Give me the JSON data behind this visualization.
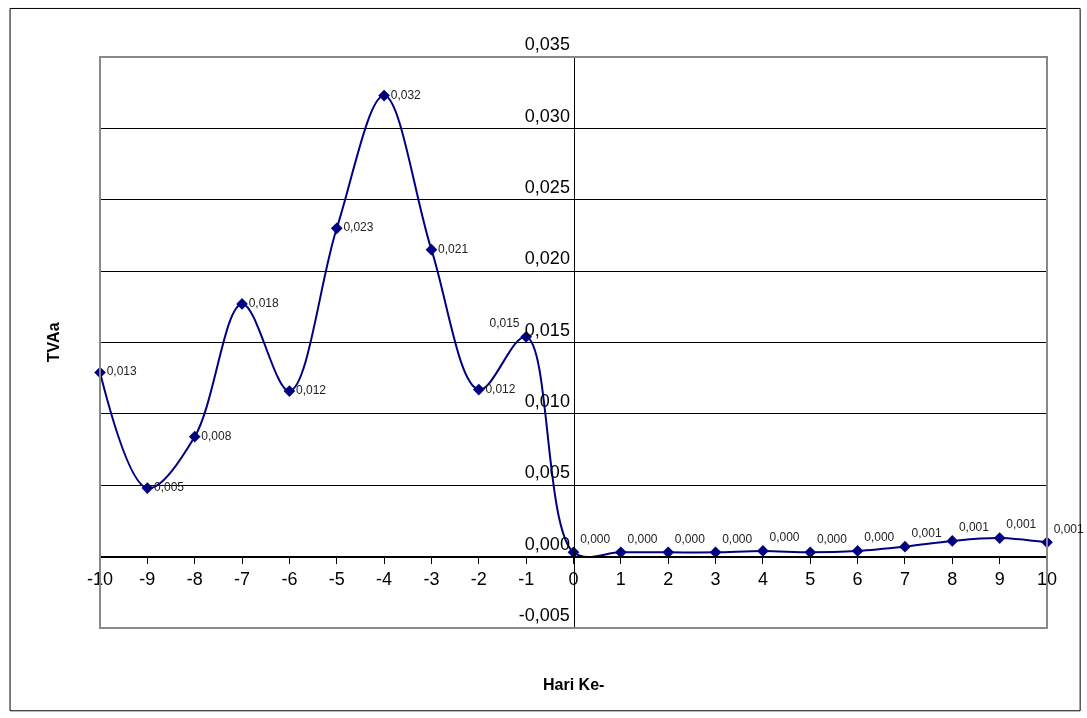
{
  "chart_data": {
    "type": "line",
    "xlabel": "Hari Ke-",
    "ylabel": "TVAa",
    "x": [
      -10,
      -9,
      -8,
      -7,
      -6,
      -5,
      -4,
      -3,
      -2,
      -1,
      0,
      1,
      2,
      3,
      4,
      5,
      6,
      7,
      8,
      9,
      10
    ],
    "series": [
      {
        "color": "#000080",
        "values": [
          0.0129,
          0.0048,
          0.0084,
          0.0177,
          0.0116,
          0.023,
          0.0323,
          0.0215,
          0.0117,
          0.0154,
          0.0003,
          0.0003,
          0.0003,
          0.0003,
          0.0004,
          0.0003,
          0.0004,
          0.0007,
          0.0011,
          0.0013,
          0.001
        ],
        "value_labels": [
          "0,013",
          "0,005",
          "0,008",
          "0,018",
          "0,012",
          "0,023",
          "0,032",
          "0,021",
          "0,012",
          "0,015",
          "0,000",
          "0,000",
          "0,000",
          "0,000",
          "0,000",
          "0,000",
          "0,000",
          "0,001",
          "0,001",
          "0,001",
          "0,001"
        ]
      }
    ],
    "xlim": [
      -10,
      10
    ],
    "xticks": [
      -10,
      -9,
      -8,
      -7,
      -6,
      -5,
      -4,
      -3,
      -2,
      -1,
      0,
      1,
      2,
      3,
      4,
      5,
      6,
      7,
      8,
      9,
      10
    ],
    "ylim": [
      -0.005,
      0.035
    ],
    "yticks": [
      {
        "value": -0.005,
        "label": "-0,005"
      },
      {
        "value": 0,
        "label": "0,000"
      },
      {
        "value": 0.005,
        "label": "0,005"
      },
      {
        "value": 0.01,
        "label": "0,010"
      },
      {
        "value": 0.015,
        "label": "0,015"
      },
      {
        "value": 0.02,
        "label": "0,020"
      },
      {
        "value": 0.025,
        "label": "0,025"
      },
      {
        "value": 0.03,
        "label": "0,030"
      },
      {
        "value": 0.035,
        "label": "0,035"
      }
    ],
    "grid": "y",
    "marker": "diamond",
    "line_style": "solid",
    "legend": false
  }
}
